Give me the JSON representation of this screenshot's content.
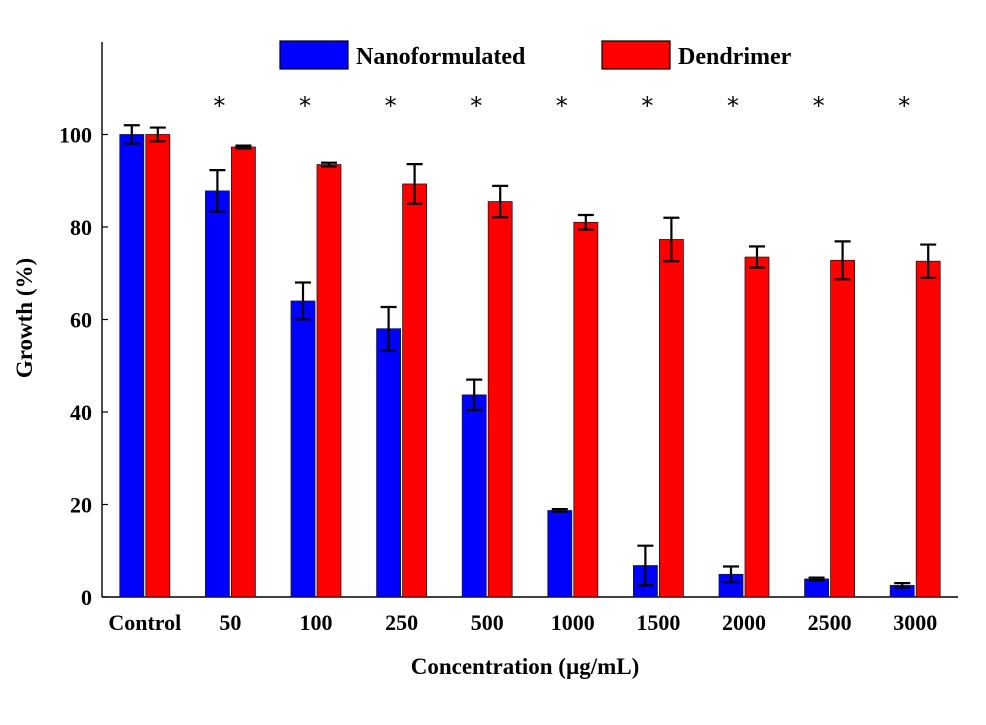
{
  "chart_data": {
    "type": "bar",
    "xlabel": "Concentration (µg/mL)",
    "ylabel": "Growth (%)",
    "ylim": [
      0,
      120
    ],
    "yticks": [
      "0",
      "20",
      "40",
      "60",
      "80",
      "100"
    ],
    "categories": [
      "Control",
      "50",
      "100",
      "250",
      "500",
      "1000",
      "1500",
      "2000",
      "2500",
      "3000"
    ],
    "series": [
      {
        "name": "Nanoformulated",
        "color": "#0000ff",
        "values": [
          100,
          87.8,
          64.0,
          58.0,
          43.7,
          18.7,
          6.8,
          4.9,
          3.9,
          2.5
        ],
        "errors": [
          2.0,
          4.5,
          4.0,
          4.7,
          3.3,
          0.3,
          4.3,
          1.7,
          0.3,
          0.5
        ]
      },
      {
        "name": "Dendrimer",
        "color": "#ff0000",
        "values": [
          100,
          97.3,
          93.5,
          89.3,
          85.5,
          81.0,
          77.3,
          73.5,
          72.8,
          72.6
        ],
        "errors": [
          1.5,
          0.3,
          0.4,
          4.3,
          3.4,
          1.6,
          4.7,
          2.3,
          4.1,
          3.6
        ]
      }
    ],
    "significance_marks": [
      "",
      "*",
      "*",
      "*",
      "*",
      "*",
      "*",
      "*",
      "*",
      "*"
    ],
    "legend": {
      "placement": "top-center",
      "entries": [
        "Nanoformulated",
        "Dendrimer"
      ]
    },
    "grid": false
  }
}
